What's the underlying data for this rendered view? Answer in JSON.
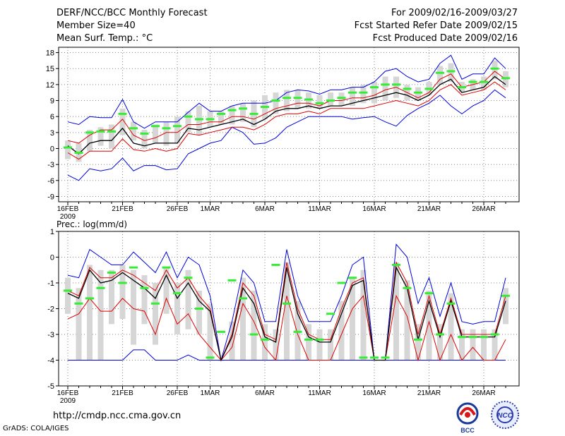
{
  "header": {
    "title": "DERF/NCC/BCC Monthly Forecast",
    "member_size": "Member Size=40",
    "variable": "Mean Surf. Temp.: °C",
    "period": "For 2009/02/16-2009/03/27",
    "started": "Fcst Started Refer Date 2009/02/15",
    "produced": "Fcst Produced Date 2009/02/16"
  },
  "footer": {
    "url": "http://cmdp.ncc.cma.gov.cn",
    "grads": "GrADS: COLA/IGES",
    "logo_bcc": "BCC",
    "logo_ncc": "NCC"
  },
  "colors": {
    "max_min": "#0000dd",
    "spread": "#dd0000",
    "mean": "#000000",
    "ens_marker": "#33ee33",
    "box": "#d6d6d6"
  },
  "chart_data": [
    {
      "type": "line",
      "title": "Mean Surf. Temp.: °C",
      "xlabels": [
        "16FEB",
        "21FEB",
        "26FEB",
        "1MAR",
        "6MAR",
        "11MAR",
        "16MAR",
        "21MAR",
        "26MAR"
      ],
      "xlabel_index": [
        0,
        5,
        10,
        13,
        18,
        23,
        28,
        33,
        38
      ],
      "year_label": "2009",
      "ylim": [
        -10,
        19
      ],
      "yticks": [
        -9,
        -6,
        -3,
        0,
        3,
        6,
        9,
        12,
        15,
        18
      ],
      "max": [
        5,
        4.5,
        6,
        5.8,
        5.8,
        9.2,
        5,
        3.8,
        5,
        5,
        5,
        6.8,
        8.5,
        7,
        7,
        8,
        8.5,
        8.5,
        8.5,
        9,
        10.5,
        11,
        10.8,
        10.2,
        11,
        11,
        11.5,
        11.5,
        12.5,
        14.5,
        15,
        13.5,
        12.5,
        13,
        16,
        17.5,
        13,
        14,
        14,
        17,
        15
      ],
      "upper": [
        1.5,
        1,
        2.5,
        3.5,
        3.5,
        5.5,
        2.5,
        1.5,
        2,
        3,
        3,
        4.5,
        4.5,
        5,
        5,
        6,
        6,
        5.5,
        6.5,
        7.5,
        8,
        8.5,
        8.5,
        8,
        9,
        9,
        9.5,
        9.5,
        10,
        11,
        11.5,
        10.5,
        9.5,
        10.5,
        13,
        14,
        11.5,
        12,
        12.5,
        14.5,
        13
      ],
      "mean": [
        0.5,
        -1,
        1,
        1.5,
        1.5,
        3.8,
        1,
        0.5,
        1,
        1,
        1,
        3.8,
        3.5,
        4,
        4.5,
        5,
        5.5,
        4.5,
        5.5,
        7,
        7.5,
        7.5,
        8,
        7.5,
        8,
        8,
        8.5,
        9,
        9.5,
        10,
        10.5,
        10,
        9,
        10,
        12,
        13,
        10.5,
        11,
        11.5,
        13.5,
        12
      ],
      "lower": [
        -0.8,
        -2,
        -0.5,
        -0.5,
        -0.5,
        1.8,
        -0.2,
        -0.5,
        0,
        -0.5,
        0,
        2.8,
        2.5,
        3,
        3.5,
        4,
        4,
        3.5,
        4.5,
        6,
        6.5,
        6.5,
        7,
        6.5,
        7.5,
        7.5,
        7.5,
        7.5,
        8,
        8.5,
        9,
        8.5,
        8,
        9,
        11,
        12,
        10,
        10.5,
        11,
        12.5,
        11
      ],
      "min": [
        -5,
        -6,
        -3.8,
        -4.2,
        -3.8,
        -1.8,
        -4.2,
        -3.2,
        -3.2,
        -4,
        -3.8,
        -1,
        0,
        1,
        1.5,
        4,
        3,
        0.8,
        1,
        2,
        4,
        5,
        6,
        6,
        6,
        6,
        5.5,
        5.8,
        6,
        5,
        4.2,
        6.2,
        7.5,
        8.5,
        10,
        8,
        6.5,
        8,
        9,
        11,
        9.5
      ],
      "ens_mean": [
        0.2,
        -0.8,
        3,
        3.2,
        3.2,
        6.5,
        3.8,
        2.8,
        4.2,
        3.8,
        4.2,
        6,
        5.5,
        5.5,
        6.5,
        7.2,
        7.5,
        6.5,
        7.8,
        9,
        9.5,
        9.5,
        9.2,
        8.5,
        9,
        9.5,
        10.5,
        10.5,
        11.5,
        12,
        12,
        11.2,
        10.5,
        11.2,
        14.2,
        14.5,
        11.5,
        12.5,
        12.5,
        15,
        13.2
      ],
      "box_hi": [
        1.5,
        1,
        3.5,
        4,
        4.5,
        7.5,
        5,
        3.5,
        4.5,
        5,
        6,
        7,
        8,
        7,
        7,
        8,
        8.5,
        9,
        10,
        10.5,
        11,
        11,
        10.5,
        10,
        10.5,
        10.5,
        11.5,
        12,
        12.5,
        13.5,
        13.5,
        12,
        11.5,
        12.5,
        15.5,
        16,
        12.5,
        13,
        13.5,
        16.5,
        14.5
      ],
      "box_lo": [
        -2,
        -2.5,
        -0.5,
        0.5,
        0,
        2.5,
        1.5,
        0,
        1,
        0.5,
        1,
        3,
        2.5,
        4,
        4.5,
        4.5,
        5,
        4,
        5.5,
        6.5,
        7,
        7.5,
        7.5,
        7.5,
        8,
        8,
        8,
        8.5,
        8.5,
        9,
        9.5,
        9,
        9,
        10,
        12,
        12.5,
        10.5,
        11,
        11,
        13,
        11.5
      ]
    },
    {
      "type": "line",
      "title": "Prec.: log(mm/d)",
      "xlabels": [
        "16FEB",
        "21FEB",
        "26FEB",
        "1MAR",
        "6MAR",
        "11MAR",
        "16MAR",
        "21MAR",
        "26MAR"
      ],
      "xlabel_index": [
        0,
        5,
        10,
        13,
        18,
        23,
        28,
        33,
        38
      ],
      "year_label": "2009",
      "ylim": [
        -5,
        1
      ],
      "yticks": [
        -5,
        -4,
        -3,
        -2,
        -1,
        0,
        1
      ],
      "max": [
        -0.7,
        -0.8,
        0.3,
        0,
        -0.3,
        -0.3,
        0.2,
        -0.2,
        -0.6,
        0.2,
        -0.8,
        0,
        -0.3,
        -1.5,
        -4,
        -2.5,
        -0.5,
        -1,
        -2.5,
        -2.5,
        0.3,
        -1.5,
        -2.5,
        -2.5,
        -2.5,
        -1.5,
        -0.3,
        0,
        -4,
        -4,
        0.5,
        0,
        -1.8,
        -0.8,
        -2.3,
        -1,
        -2.5,
        -2.6,
        -2.5,
        -2.5,
        -0.8
      ],
      "upper": [
        -1.3,
        -1.5,
        -0.4,
        -0.8,
        -0.8,
        -0.5,
        -0.7,
        -1,
        -1.3,
        -0.5,
        -1.2,
        -0.8,
        -1.5,
        -2,
        -4,
        -3,
        -1,
        -1.5,
        -3,
        -3.2,
        -0.2,
        -2,
        -3,
        -3.2,
        -3.2,
        -2,
        -1,
        -0.8,
        -4,
        -4,
        -0.2,
        -1,
        -3,
        -1.5,
        -3,
        -1.6,
        -3,
        -3,
        -3,
        -3,
        -1.5
      ],
      "mean": [
        -1.4,
        -1.6,
        -0.5,
        -1,
        -0.9,
        -0.6,
        -0.9,
        -1.2,
        -1.6,
        -0.7,
        -1.6,
        -1,
        -1.7,
        -2.1,
        -4,
        -3.1,
        -1.2,
        -1.8,
        -3.1,
        -3.3,
        -0.4,
        -2.2,
        -3.1,
        -3.3,
        -3.3,
        -2.2,
        -1.1,
        -0.9,
        -4,
        -4,
        -0.4,
        -1.2,
        -3.2,
        -1.7,
        -3.1,
        -1.7,
        -3.1,
        -3.1,
        -3.1,
        -3.1,
        -1.7
      ],
      "lower": [
        -2.4,
        -2.2,
        -1.6,
        -2.1,
        -2.1,
        -1.6,
        -2,
        -2.1,
        -3,
        -1.6,
        -2.6,
        -2.2,
        -3,
        -3.5,
        -4,
        -3.5,
        -1.8,
        -2.5,
        -3.5,
        -4,
        -1.5,
        -3,
        -4,
        -4,
        -4,
        -3,
        -2,
        -1.5,
        -4,
        -4,
        -1.5,
        -2.3,
        -4,
        -2.5,
        -4,
        -3,
        -4,
        -3.5,
        -4,
        -4,
        -3.2
      ],
      "min": [
        -4,
        -4,
        -4,
        -4,
        -4,
        -4,
        -3.6,
        -3.6,
        -4,
        -4,
        -4,
        -3.8,
        -4,
        -4,
        -4,
        -4,
        -4,
        -4,
        -4,
        -4,
        -4,
        -4,
        -4,
        -4,
        -4,
        -4,
        -4,
        -4,
        -4,
        -4,
        -4,
        -4,
        -4,
        -4,
        -4,
        -4,
        -4,
        -4,
        -4,
        -4,
        -4
      ],
      "ens_mean": [
        -1.3,
        -1.8,
        -1.6,
        -1.2,
        -0.6,
        -1,
        -0.4,
        -1.2,
        -1.8,
        -0.4,
        -1.4,
        -0.8,
        -2,
        -3.9,
        -2.9,
        -0.9,
        -1.6,
        -3,
        -3.2,
        -0.3,
        -1.8,
        -2.9,
        -3.2,
        -3.2,
        -2.2,
        -1,
        -0.8,
        -3.9,
        -3.9,
        -3.9,
        -0.3,
        -1.2,
        -3.2,
        -1.4,
        -3,
        -1.8,
        -3.1,
        -3.1,
        -3.1,
        -3,
        -1.5
      ],
      "box_hi": [
        -0.8,
        -1.2,
        -0.3,
        -0.5,
        -0.5,
        -0.3,
        -0.5,
        -0.7,
        -1,
        -0.4,
        -1,
        -0.5,
        -1.3,
        -1.8,
        -4,
        -2.5,
        -0.8,
        -1.3,
        -2.6,
        -2.8,
        -0.2,
        -1.7,
        -2.6,
        -2.8,
        -2.8,
        -1.7,
        -0.8,
        -0.5,
        -4,
        -4,
        -0.2,
        -0.9,
        -2.6,
        -1.3,
        -2.6,
        -1.4,
        -2.8,
        -2.8,
        -2.8,
        -2.8,
        -1.2
      ],
      "box_lo": [
        -2.2,
        -4,
        -4,
        -4,
        -2.6,
        -2.4,
        -3.4,
        -2.6,
        -3.4,
        -2.2,
        -3,
        -2.8,
        -3,
        -4,
        -4,
        -4,
        -4,
        -4,
        -4,
        -4,
        -4,
        -4,
        -4,
        -4,
        -4,
        -4,
        -4,
        -4,
        -4,
        -4,
        -4,
        -4,
        -4,
        -4,
        -4,
        -4,
        -4,
        -4,
        -4,
        -4,
        -2.6
      ]
    }
  ]
}
